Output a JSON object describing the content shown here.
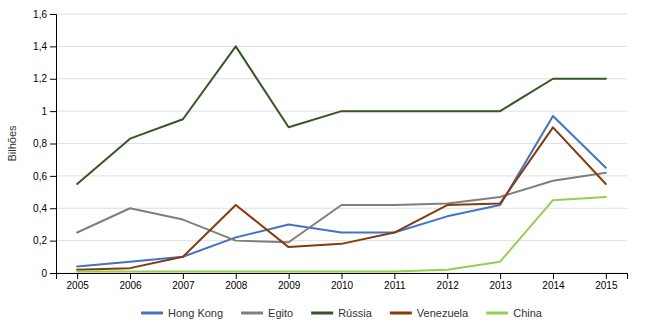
{
  "chart_data": {
    "type": "line",
    "y_label": "Bilhões",
    "x": [
      2005,
      2006,
      2007,
      2008,
      2009,
      2010,
      2011,
      2012,
      2013,
      2014,
      2015
    ],
    "series": [
      {
        "name": "Hong Kong",
        "color": "#4472C4",
        "values": [
          0.04,
          0.07,
          0.1,
          0.22,
          0.3,
          0.25,
          0.25,
          0.35,
          0.42,
          0.97,
          0.65
        ]
      },
      {
        "name": "Egito",
        "color": "#7F7F7F",
        "values": [
          0.25,
          0.4,
          0.33,
          0.2,
          0.19,
          0.42,
          0.42,
          0.43,
          0.47,
          0.57,
          0.62
        ]
      },
      {
        "name": "Rússia",
        "color": "#375623",
        "values": [
          0.55,
          0.83,
          0.95,
          1.4,
          0.9,
          1.0,
          1.0,
          1.0,
          1.0,
          1.2,
          1.2
        ]
      },
      {
        "name": "Venezuela",
        "color": "#843C0C",
        "values": [
          0.02,
          0.03,
          0.1,
          0.42,
          0.16,
          0.18,
          0.25,
          0.42,
          0.43,
          0.9,
          0.55
        ]
      },
      {
        "name": "China",
        "color": "#92D050",
        "values": [
          0.01,
          0.01,
          0.01,
          0.01,
          0.01,
          0.01,
          0.01,
          0.02,
          0.07,
          0.45,
          0.47
        ]
      }
    ],
    "xlim": [
      2004.6,
      2015.4
    ],
    "xticks": [
      2005,
      2006,
      2007,
      2008,
      2009,
      2010,
      2011,
      2012,
      2013,
      2014,
      2015
    ],
    "ylim": [
      0,
      1.6
    ],
    "yticks": [
      0,
      {
        "value": 0.2,
        "label": "0,2"
      },
      {
        "value": 0.4,
        "label": "0,4"
      },
      {
        "value": 0.6,
        "label": "0,6"
      },
      {
        "value": 0.8,
        "label": "0,8"
      },
      1,
      {
        "value": 1.2,
        "label": "1,2"
      },
      {
        "value": 1.4,
        "label": "1,4"
      },
      {
        "value": 1.6,
        "label": "1,6"
      }
    ],
    "grid": true,
    "legend": "bottom"
  }
}
